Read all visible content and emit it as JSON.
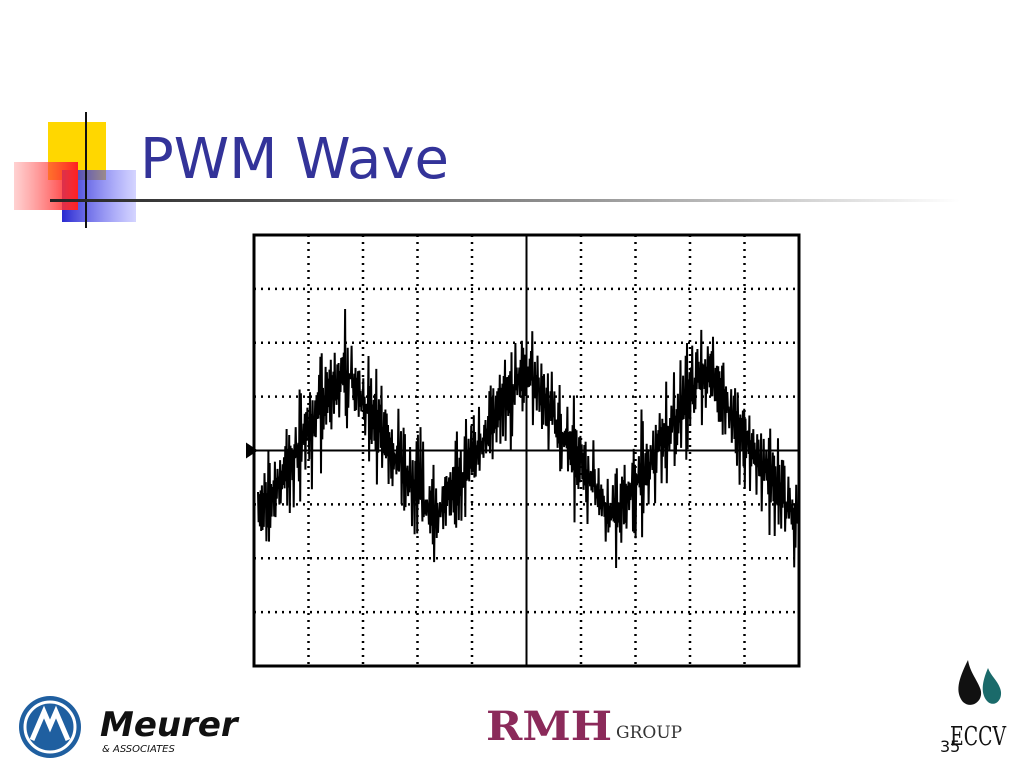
{
  "slide": {
    "title": "PWM Wave",
    "page_number": "35"
  },
  "logos": {
    "meurer": {
      "name": "Meurer",
      "sub": "& ASSOCIATES"
    },
    "rmh": {
      "name": "RMH",
      "sub": "GROUP"
    },
    "eccv": {
      "name": "ECCV"
    }
  }
}
